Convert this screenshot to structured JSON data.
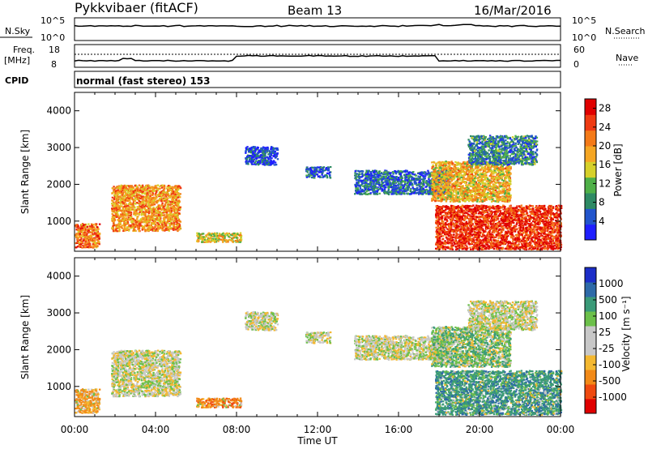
{
  "header": {
    "station": "Pykkvibaer (fitACF)",
    "beam": "Beam 13",
    "date": "16/Mar/2016"
  },
  "strips": {
    "nsky_label": "N.Sky",
    "nsearch_label": "N.Search",
    "freq_label_line1": "Freq.",
    "freq_label_line2": "[MHz]",
    "nave_label": "Nave",
    "cpid_label": "CPID",
    "cpid_value": "normal (fast stereo) 153",
    "noise_ticks": [
      "10^5",
      "10^0"
    ],
    "noise_right_ticks": [
      "10^5",
      "10^0"
    ],
    "freq_ticks": [
      "18",
      "8"
    ],
    "nave_ticks": [
      "60",
      "0"
    ]
  },
  "colors": {
    "power_scale": [
      "#1f1fff",
      "#2255cc",
      "#2e8a64",
      "#4fb048",
      "#d6d02a",
      "#f5a623",
      "#f47a18",
      "#ef3a12",
      "#e00000"
    ],
    "velocity_scale": [
      "#e00000",
      "#ef4a10",
      "#f28a18",
      "#f4b830",
      "#c8c8c8",
      "#c8c8c8",
      "#6cc04a",
      "#3a9a78",
      "#2e6aa8",
      "#1c2ec8"
    ]
  },
  "chart_data": [
    {
      "type": "heatmap",
      "panel": "power",
      "ylabel": "Slant Range [km]",
      "yticks": [
        "1000",
        "2000",
        "3000",
        "4000"
      ],
      "ylim": [
        180,
        4500
      ],
      "colorbar_label": "Power [dB]",
      "colorbar_ticks": [
        "4",
        "8",
        "12",
        "16",
        "20",
        "24",
        "28"
      ],
      "clim": [
        0,
        30
      ],
      "xlim_hours": [
        0,
        24
      ],
      "regions": [
        {
          "t": [
            1.8,
            5.2
          ],
          "r": [
            700,
            1950
          ],
          "level": 20
        },
        {
          "t": [
            0.0,
            1.2
          ],
          "r": [
            250,
            900
          ],
          "level": 22
        },
        {
          "t": [
            6.0,
            8.2
          ],
          "r": [
            400,
            650
          ],
          "level": 16
        },
        {
          "t": [
            8.4,
            10.0
          ],
          "r": [
            2500,
            3000
          ],
          "level": 4
        },
        {
          "t": [
            11.4,
            12.6
          ],
          "r": [
            2150,
            2450
          ],
          "level": 5
        },
        {
          "t": [
            13.8,
            18.5
          ],
          "r": [
            1700,
            2350
          ],
          "level": 6
        },
        {
          "t": [
            17.6,
            21.5
          ],
          "r": [
            1500,
            2600
          ],
          "level": 18
        },
        {
          "t": [
            17.8,
            24.0
          ],
          "r": [
            200,
            1400
          ],
          "level": 26
        },
        {
          "t": [
            19.4,
            22.8
          ],
          "r": [
            2500,
            3300
          ],
          "level": 8
        }
      ]
    },
    {
      "type": "heatmap",
      "panel": "velocity",
      "ylabel": "Slant Range [km]",
      "yticks": [
        "1000",
        "2000",
        "3000",
        "4000"
      ],
      "ylim": [
        180,
        4500
      ],
      "colorbar_label": "Velocity [m s⁻¹]",
      "colorbar_ticks": [
        "1000",
        "500",
        "100",
        "25",
        "-25",
        "-100",
        "-500",
        "-1000"
      ],
      "xlim_hours": [
        0,
        24
      ],
      "xticks": [
        "00:00",
        "04:00",
        "08:00",
        "12:00",
        "16:00",
        "20:00",
        "00:00"
      ],
      "xlabel": "Time UT",
      "regions": [
        {
          "t": [
            1.8,
            5.2
          ],
          "r": [
            700,
            1950
          ],
          "v": 0
        },
        {
          "t": [
            0.0,
            1.2
          ],
          "r": [
            250,
            900
          ],
          "v": -150
        },
        {
          "t": [
            6.0,
            8.2
          ],
          "r": [
            400,
            650
          ],
          "v": -300
        },
        {
          "t": [
            8.4,
            10.0
          ],
          "r": [
            2500,
            3000
          ],
          "v": 0
        },
        {
          "t": [
            11.4,
            12.6
          ],
          "r": [
            2150,
            2450
          ],
          "v": 0
        },
        {
          "t": [
            13.8,
            18.5
          ],
          "r": [
            1700,
            2350
          ],
          "v": 0
        },
        {
          "t": [
            17.6,
            21.5
          ],
          "r": [
            1500,
            2600
          ],
          "v": 50
        },
        {
          "t": [
            17.8,
            24.0
          ],
          "r": [
            200,
            1400
          ],
          "v": 300
        },
        {
          "t": [
            19.4,
            22.8
          ],
          "r": [
            2500,
            3300
          ],
          "v": 0
        }
      ]
    }
  ]
}
